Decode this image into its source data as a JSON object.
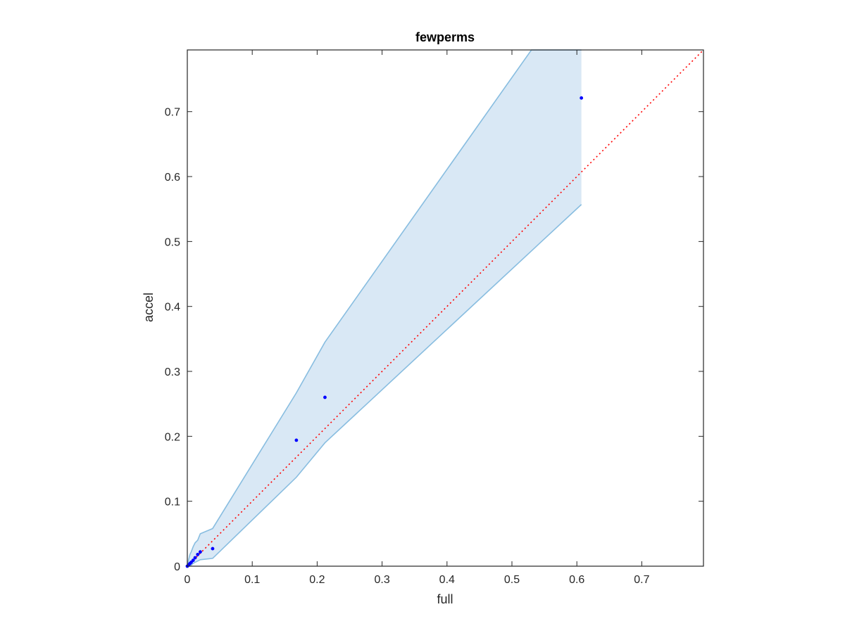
{
  "chart_data": {
    "type": "scatter",
    "title": "fewperms",
    "xlabel": "full",
    "ylabel": "accel",
    "xlim": [
      0,
      0.795
    ],
    "ylim": [
      0,
      0.795
    ],
    "xticks": [
      "0",
      "0.1",
      "0.2",
      "0.3",
      "0.4",
      "0.5",
      "0.6",
      "0.7"
    ],
    "yticks": [
      "0",
      "0.1",
      "0.2",
      "0.3",
      "0.4",
      "0.5",
      "0.6",
      "0.7"
    ],
    "grid": false,
    "colors": {
      "points": "#0000ff",
      "reference_line": "#ff0000",
      "band_fill": "#d9e8f5",
      "band_edge": "#88bde0",
      "axes": "#262626"
    },
    "reference_line": {
      "x": [
        0,
        0.795
      ],
      "y": [
        0,
        0.795
      ],
      "style": "dotted"
    },
    "points": {
      "x": [
        0.0,
        0.002,
        0.004,
        0.006,
        0.009,
        0.012,
        0.016,
        0.02,
        0.039,
        0.168,
        0.212,
        0.607
      ],
      "y": [
        0.0,
        0.002,
        0.004,
        0.006,
        0.009,
        0.013,
        0.018,
        0.022,
        0.027,
        0.194,
        0.26,
        0.721
      ]
    },
    "band": {
      "upper": {
        "x": [
          0.0,
          0.002,
          0.004,
          0.006,
          0.009,
          0.012,
          0.016,
          0.02,
          0.039,
          0.168,
          0.212,
          0.53,
          0.607
        ],
        "y": [
          0.0,
          0.01,
          0.018,
          0.022,
          0.03,
          0.036,
          0.04,
          0.05,
          0.058,
          0.267,
          0.345,
          0.795,
          0.795
        ]
      },
      "lower": {
        "x": [
          0.0,
          0.004,
          0.01,
          0.02,
          0.039,
          0.168,
          0.212,
          0.607
        ],
        "y": [
          0.0,
          0.0,
          0.005,
          0.01,
          0.012,
          0.137,
          0.19,
          0.557
        ]
      }
    }
  }
}
